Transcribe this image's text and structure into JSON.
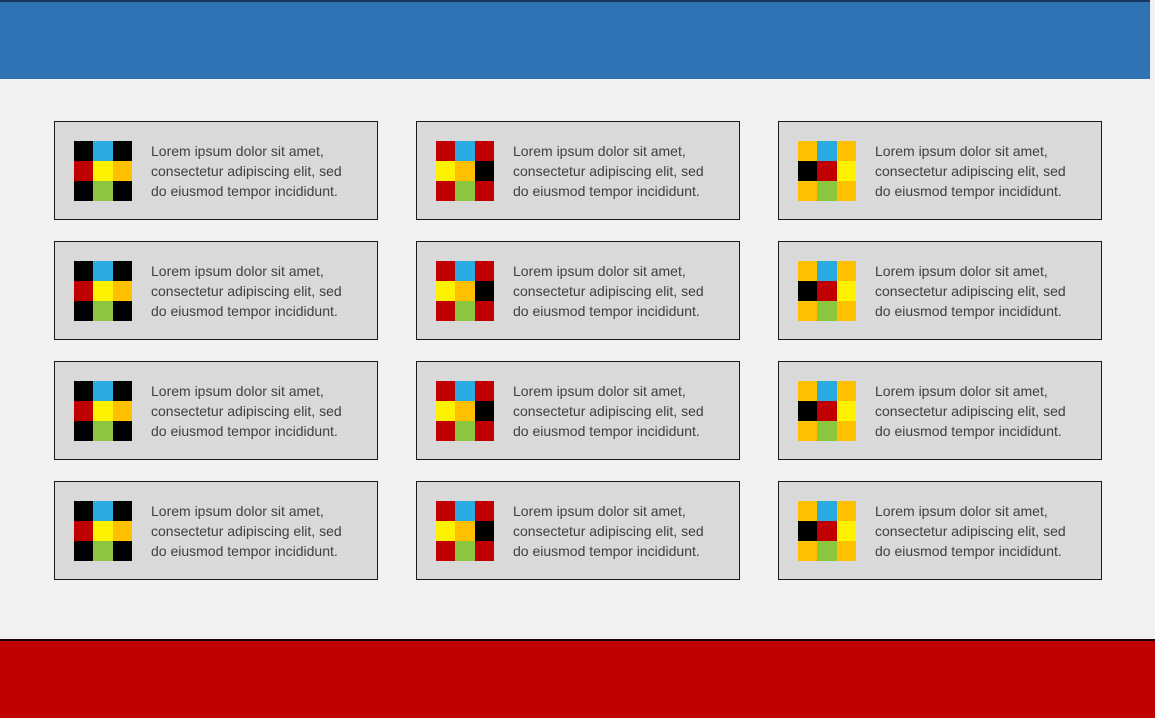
{
  "canvas": {
    "background_color": "#F1F1F2"
  },
  "header": {
    "color": "#2E74B5",
    "top_line_color": "#17375E"
  },
  "footer": {
    "color": "#C00000",
    "top_line_color": "#1A0505"
  },
  "card_style": {
    "background_color": "#D9D9D9",
    "border_color": "#1A1A1A",
    "text_color": "#3F3F3F"
  },
  "card_text": "Lorem ipsum dolor sit amet, consectetur adipiscing elit, sed do eiusmod tempor incididunt.",
  "card_text_lines": [
    "Lorem ipsum dolor sit amet,",
    "consectetur adipiscing elit, sed",
    "do eiusmod tempor incididunt."
  ],
  "palette": {
    "black": "#000000",
    "blue": "#29ABE2",
    "red": "#C00000",
    "yellow": "#FFF200",
    "orange": "#FFC000",
    "green": "#8CC63F"
  },
  "icon_patterns": {
    "col1": [
      [
        "black",
        "blue",
        "black"
      ],
      [
        "red",
        "yellow",
        "orange"
      ],
      [
        "black",
        "green",
        "black"
      ]
    ],
    "col2": [
      [
        "red",
        "blue",
        "red"
      ],
      [
        "yellow",
        "orange",
        "black"
      ],
      [
        "red",
        "green",
        "red"
      ]
    ],
    "col3": [
      [
        "orange",
        "blue",
        "orange"
      ],
      [
        "black",
        "red",
        "yellow"
      ],
      [
        "orange",
        "green",
        "orange"
      ]
    ]
  },
  "cards": [
    {
      "row": 1,
      "col": 1,
      "icon": "col1"
    },
    {
      "row": 1,
      "col": 2,
      "icon": "col2"
    },
    {
      "row": 1,
      "col": 3,
      "icon": "col3"
    },
    {
      "row": 2,
      "col": 1,
      "icon": "col1"
    },
    {
      "row": 2,
      "col": 2,
      "icon": "col2"
    },
    {
      "row": 2,
      "col": 3,
      "icon": "col3"
    },
    {
      "row": 3,
      "col": 1,
      "icon": "col1"
    },
    {
      "row": 3,
      "col": 2,
      "icon": "col2"
    },
    {
      "row": 3,
      "col": 3,
      "icon": "col3"
    },
    {
      "row": 4,
      "col": 1,
      "icon": "col1"
    },
    {
      "row": 4,
      "col": 2,
      "icon": "col2"
    },
    {
      "row": 4,
      "col": 3,
      "icon": "col3"
    }
  ]
}
